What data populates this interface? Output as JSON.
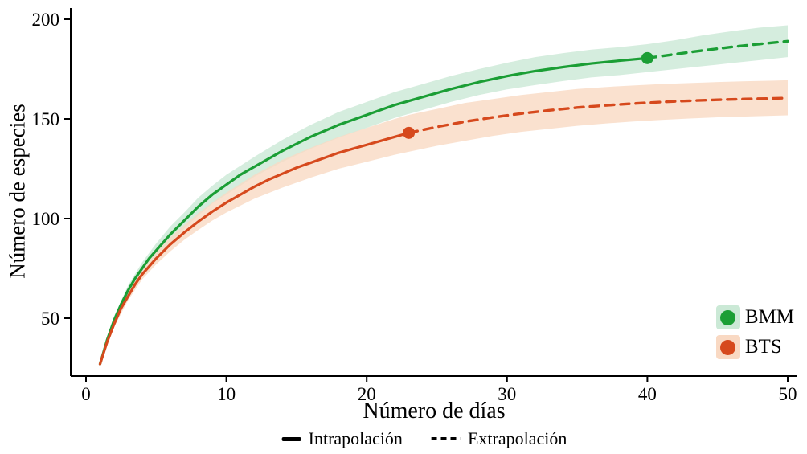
{
  "chart_data": {
    "type": "line",
    "title": "",
    "xlabel": "Número de días",
    "ylabel": "Número de especies",
    "xlim": [
      -1,
      51
    ],
    "ylim": [
      20,
      205
    ],
    "xticks": [
      0,
      10,
      20,
      30,
      40,
      50
    ],
    "yticks": [
      50,
      100,
      150,
      200
    ],
    "grid": false,
    "legend_position": "bottom-right",
    "linetype_legend": [
      {
        "label": "Intrapolación",
        "style": "solid"
      },
      {
        "label": "Extrapolación",
        "style": "dashed"
      }
    ],
    "series": [
      {
        "name": "BMM",
        "color": "#1b9e35",
        "ribbon_fill": "#cbe9d6",
        "observed_point": [
          40,
          180.5
        ],
        "interpolation": [
          [
            1,
            27
          ],
          [
            1.5,
            39
          ],
          [
            2,
            49
          ],
          [
            2.5,
            57
          ],
          [
            3,
            64
          ],
          [
            3.5,
            70
          ],
          [
            4,
            75
          ],
          [
            4.5,
            80
          ],
          [
            5,
            84
          ],
          [
            6,
            92
          ],
          [
            7,
            99
          ],
          [
            8,
            106
          ],
          [
            9,
            112
          ],
          [
            10,
            117
          ],
          [
            11,
            122
          ],
          [
            12,
            126
          ],
          [
            13,
            130
          ],
          [
            14,
            134
          ],
          [
            15,
            137.5
          ],
          [
            16,
            141
          ],
          [
            17,
            144
          ],
          [
            18,
            147
          ],
          [
            19,
            149.5
          ],
          [
            20,
            152
          ],
          [
            22,
            157
          ],
          [
            24,
            161
          ],
          [
            26,
            165
          ],
          [
            28,
            168.5
          ],
          [
            30,
            171.5
          ],
          [
            32,
            174
          ],
          [
            34,
            176
          ],
          [
            36,
            177.8
          ],
          [
            38,
            179.2
          ],
          [
            40,
            180.5
          ]
        ],
        "extrapolation": [
          [
            40,
            180.5
          ],
          [
            42,
            182.5
          ],
          [
            44,
            184.4
          ],
          [
            46,
            186.1
          ],
          [
            48,
            187.6
          ],
          [
            50,
            189
          ]
        ],
        "ribbon": [
          [
            1,
            26,
            28
          ],
          [
            2,
            47,
            51
          ],
          [
            3,
            61.5,
            66.5
          ],
          [
            4,
            72,
            78
          ],
          [
            5,
            80.5,
            87.5
          ],
          [
            6,
            88,
            96
          ],
          [
            7,
            95,
            103
          ],
          [
            8,
            101.5,
            110.5
          ],
          [
            9,
            107.5,
            116.5
          ],
          [
            10,
            112,
            122
          ],
          [
            12,
            121,
            131
          ],
          [
            14,
            128.5,
            139.5
          ],
          [
            16,
            135,
            147
          ],
          [
            18,
            140.5,
            153.5
          ],
          [
            20,
            145.5,
            158.5
          ],
          [
            22,
            150.5,
            163.5
          ],
          [
            24,
            154.5,
            167.5
          ],
          [
            26,
            158.5,
            171.5
          ],
          [
            28,
            162,
            175
          ],
          [
            30,
            164.8,
            178.2
          ],
          [
            32,
            167,
            181
          ],
          [
            34,
            169,
            183
          ],
          [
            36,
            170.8,
            184.8
          ],
          [
            38,
            172,
            186
          ],
          [
            40,
            173.5,
            187.5
          ],
          [
            42,
            175,
            189.5
          ],
          [
            44,
            176.5,
            192
          ],
          [
            46,
            178,
            194
          ],
          [
            48,
            179.5,
            195.8
          ],
          [
            50,
            181,
            197
          ]
        ]
      },
      {
        "name": "BTS",
        "color": "#d6491d",
        "ribbon_fill": "#f9d9c3",
        "observed_point": [
          23,
          143
        ],
        "interpolation": [
          [
            1,
            27
          ],
          [
            1.5,
            38
          ],
          [
            2,
            47
          ],
          [
            2.5,
            55
          ],
          [
            3,
            61
          ],
          [
            3.5,
            67
          ],
          [
            4,
            72
          ],
          [
            4.5,
            76
          ],
          [
            5,
            80
          ],
          [
            6,
            87
          ],
          [
            7,
            93
          ],
          [
            8,
            98.5
          ],
          [
            9,
            103.5
          ],
          [
            10,
            108
          ],
          [
            11,
            112
          ],
          [
            12,
            116
          ],
          [
            13,
            119.5
          ],
          [
            14,
            122.5
          ],
          [
            15,
            125.5
          ],
          [
            16,
            128
          ],
          [
            17,
            130.5
          ],
          [
            18,
            133
          ],
          [
            19,
            135
          ],
          [
            20,
            137
          ],
          [
            21,
            139
          ],
          [
            22,
            141
          ],
          [
            23,
            143
          ]
        ],
        "extrapolation": [
          [
            23,
            143
          ],
          [
            25,
            146
          ],
          [
            27,
            148.6
          ],
          [
            29,
            150.8
          ],
          [
            31,
            152.7
          ],
          [
            33,
            154.3
          ],
          [
            35,
            155.7
          ],
          [
            37,
            156.8
          ],
          [
            39,
            157.7
          ],
          [
            41,
            158.5
          ],
          [
            43,
            159.1
          ],
          [
            45,
            159.6
          ],
          [
            47,
            160
          ],
          [
            49,
            160.3
          ],
          [
            50,
            160.5
          ]
        ],
        "ribbon": [
          [
            1,
            26,
            28
          ],
          [
            2,
            45.5,
            48.5
          ],
          [
            3,
            59,
            63
          ],
          [
            4,
            69.5,
            74.5
          ],
          [
            5,
            77,
            83
          ],
          [
            6,
            83.5,
            90.5
          ],
          [
            7,
            89.3,
            96.7
          ],
          [
            8,
            94.3,
            102.7
          ],
          [
            9,
            99,
            108
          ],
          [
            10,
            103,
            113
          ],
          [
            12,
            110,
            122
          ],
          [
            14,
            115.5,
            129.5
          ],
          [
            16,
            120.5,
            135.5
          ],
          [
            18,
            125,
            141
          ],
          [
            20,
            128.5,
            145.5
          ],
          [
            22,
            132,
            150
          ],
          [
            23,
            133.5,
            152
          ],
          [
            25,
            136.5,
            155
          ],
          [
            27,
            139,
            158
          ],
          [
            29,
            141.5,
            160
          ],
          [
            31,
            143.5,
            162
          ],
          [
            33,
            145,
            163.5
          ],
          [
            35,
            146.5,
            165
          ],
          [
            37,
            147.7,
            166
          ],
          [
            39,
            148.7,
            166.8
          ],
          [
            41,
            149.5,
            167.5
          ],
          [
            43,
            150.2,
            168
          ],
          [
            45,
            150.8,
            168.5
          ],
          [
            47,
            151.2,
            168.9
          ],
          [
            49,
            151.6,
            169.2
          ],
          [
            50,
            151.8,
            169.4
          ]
        ]
      }
    ]
  }
}
